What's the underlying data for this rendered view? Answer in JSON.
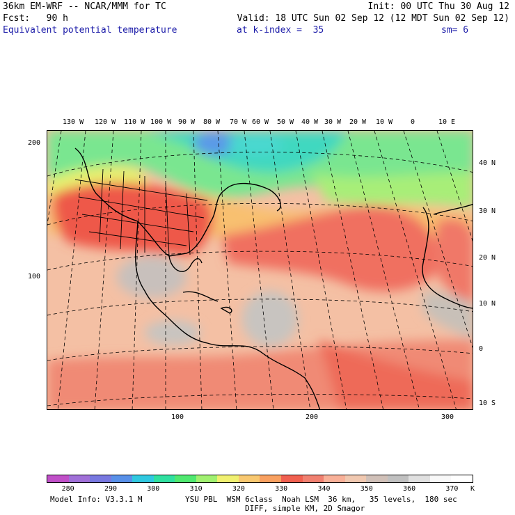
{
  "header": {
    "line1_left": "36km EM-WRF -- NCAR/MMM for TC",
    "line1_right": "Init: 00 UTC Thu 30 Aug 12",
    "line2_left": "Fcst:   90 h",
    "line2_right": "Valid: 18 UTC Sun 02 Sep 12 (12 MDT Sun 02 Sep 12)",
    "field": "Equivalent potential temperature",
    "level": "at k-index =  35",
    "smooth": "sm= 6"
  },
  "map": {
    "top_lon_labels": [
      "130 W",
      "120 W",
      "110 W",
      "100 W",
      "90 W",
      "80 W",
      "70 W",
      "60 W",
      "50 W",
      "40 W",
      "30 W",
      "20 W",
      "10 W",
      "0",
      "10 E"
    ],
    "right_lat_labels": [
      "40 N",
      "30 N",
      "20 N",
      "10 N",
      "0",
      "10 S"
    ],
    "left_grid_labels": [
      "200",
      "100"
    ],
    "bottom_grid_labels": [
      "100",
      "200",
      "300"
    ]
  },
  "colorbar": {
    "colors": [
      "#c050c8",
      "#a070d8",
      "#7878e0",
      "#5890e8",
      "#30c8e0",
      "#30e0a0",
      "#50e870",
      "#a0f070",
      "#f0f070",
      "#f8c870",
      "#f8a060",
      "#f06050",
      "#f08070",
      "#f8b098",
      "#f0c8b0",
      "#d0c0b8",
      "#c0c0c0",
      "#e0e0e0",
      "#f8f8f8",
      "#ffffff"
    ],
    "labels": [
      "280",
      "290",
      "300",
      "310",
      "320",
      "330",
      "340",
      "350",
      "360",
      "370"
    ],
    "unit": "K"
  },
  "footer": {
    "line1_left": "Model Info: V3.3.1 M",
    "line1_right": "YSU PBL  WSM 6class  Noah LSM  36 km,   35 levels,  180 sec",
    "line2": "DIFF, simple KM, 2D Smagor"
  }
}
